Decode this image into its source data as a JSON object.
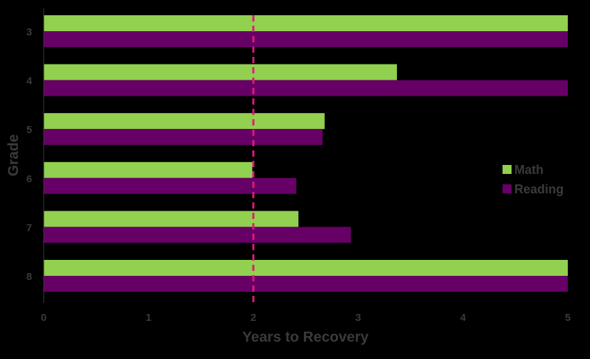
{
  "chart_data": {
    "type": "bar",
    "orientation": "horizontal",
    "categories": [
      "3",
      "4",
      "5",
      "6",
      "7",
      "8"
    ],
    "series": [
      {
        "name": "Math",
        "color": "#92d050",
        "values": [
          5.0,
          3.37,
          2.68,
          1.99,
          2.43,
          5.0
        ]
      },
      {
        "name": "Reading",
        "color": "#660066",
        "values": [
          5.0,
          5.0,
          2.66,
          2.41,
          2.93,
          5.0
        ]
      }
    ],
    "xlabel": "Years to Recovery",
    "ylabel": "Grade",
    "xlim": [
      0,
      5
    ],
    "xticks": [
      "0",
      "1",
      "2",
      "3",
      "4",
      "5"
    ],
    "reference_line": {
      "value": 2,
      "color": "#e0197a",
      "style": "dashed"
    },
    "legend_position": "right",
    "grid": false,
    "background": "#000000"
  }
}
